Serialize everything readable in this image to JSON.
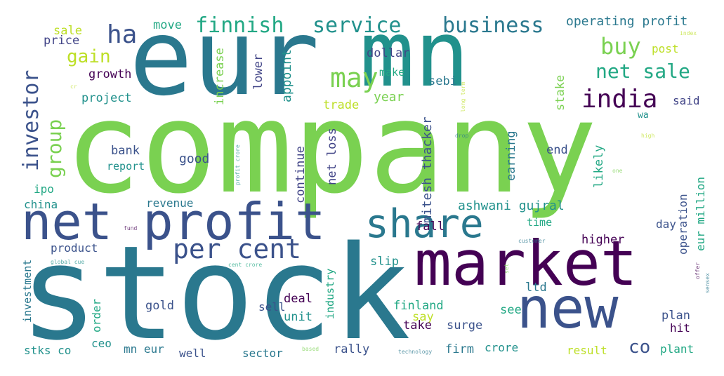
{
  "words": [
    {
      "t": "company",
      "c": "#7ad151"
    },
    {
      "t": "stock",
      "c": "#2a788e"
    },
    {
      "t": "eur",
      "c": "#2a788e"
    },
    {
      "t": "mn",
      "c": "#21918c"
    },
    {
      "t": "market",
      "c": "#440154"
    },
    {
      "t": "net profit",
      "c": "#3b528b"
    },
    {
      "t": "share",
      "c": "#2a788e"
    },
    {
      "t": "new",
      "c": "#3b528b"
    },
    {
      "t": "per cent",
      "c": "#3b528b"
    },
    {
      "t": "finnish",
      "c": "#22a884"
    },
    {
      "t": "service",
      "c": "#21918c"
    },
    {
      "t": "business",
      "c": "#2a788e"
    },
    {
      "t": "ha",
      "c": "#3b528b"
    },
    {
      "t": "may",
      "c": "#7ad151"
    },
    {
      "t": "india",
      "c": "#440154"
    },
    {
      "t": "net sale",
      "c": "#22a884"
    },
    {
      "t": "buy",
      "c": "#7ad151"
    },
    {
      "t": "co",
      "c": "#3b528b"
    },
    {
      "t": "gain",
      "c": "#bddf26"
    },
    {
      "t": "investor",
      "c": "#3b528b"
    },
    {
      "t": "group",
      "c": "#7ad151"
    },
    {
      "t": "sale",
      "c": "#bddf26"
    },
    {
      "t": "price",
      "c": "#414487"
    },
    {
      "t": "move",
      "c": "#22a884"
    },
    {
      "t": "operating profit",
      "c": "#2a788e"
    },
    {
      "t": "post",
      "c": "#bddf26"
    },
    {
      "t": "index",
      "c": "#bddf26"
    },
    {
      "t": "long term",
      "c": "#bddf26"
    },
    {
      "t": "growth",
      "c": "#440154"
    },
    {
      "t": "increase",
      "c": "#7ad151"
    },
    {
      "t": "dollar",
      "c": "#414487"
    },
    {
      "t": "lower",
      "c": "#414487"
    },
    {
      "t": "make",
      "c": "#22a884"
    },
    {
      "t": "sebi",
      "c": "#2a788e"
    },
    {
      "t": "appoint",
      "c": "#21918c"
    },
    {
      "t": "year",
      "c": "#7ad151"
    },
    {
      "t": "trade",
      "c": "#bddf26"
    },
    {
      "t": "stake",
      "c": "#7ad151"
    },
    {
      "t": "said",
      "c": "#414487"
    },
    {
      "t": "wa",
      "c": "#21918c"
    },
    {
      "t": "project",
      "c": "#21918c"
    },
    {
      "t": "cr",
      "c": "#bddf26"
    },
    {
      "t": "mitesh thacker",
      "c": "#3b528b"
    },
    {
      "t": "net loss",
      "c": "#414487"
    },
    {
      "t": "earning",
      "c": "#2a788e"
    },
    {
      "t": "likely",
      "c": "#22a884"
    },
    {
      "t": "end",
      "c": "#3b528b"
    },
    {
      "t": "eur million",
      "c": "#22a884"
    },
    {
      "t": "bank",
      "c": "#3b528b"
    },
    {
      "t": "report",
      "c": "#21918c"
    },
    {
      "t": "good",
      "c": "#3b528b"
    },
    {
      "t": "continue",
      "c": "#414487"
    },
    {
      "t": "drop",
      "c": "#2a788e"
    },
    {
      "t": "high",
      "c": "#bddf26"
    },
    {
      "t": "one",
      "c": "#7ad151"
    },
    {
      "t": "profit crore",
      "c": "#21918c"
    },
    {
      "t": "ipo",
      "c": "#22a884"
    },
    {
      "t": "china",
      "c": "#21918c"
    },
    {
      "t": "revenue",
      "c": "#2a788e"
    },
    {
      "t": "ashwani gujral",
      "c": "#21918c"
    },
    {
      "t": "fall",
      "c": "#440154"
    },
    {
      "t": "day",
      "c": "#3b528b"
    },
    {
      "t": "operation",
      "c": "#3b528b"
    },
    {
      "t": "time",
      "c": "#22a884"
    },
    {
      "t": "fund",
      "c": "#440154"
    },
    {
      "t": "customer",
      "c": "#2a788e"
    },
    {
      "t": "higher",
      "c": "#440154"
    },
    {
      "t": "product",
      "c": "#3b528b"
    },
    {
      "t": "global cue",
      "c": "#21918c"
    },
    {
      "t": "cent crore",
      "c": "#22a884"
    },
    {
      "t": "slip",
      "c": "#21918c"
    },
    {
      "t": "set",
      "c": "#7ad151"
    },
    {
      "t": "sensex",
      "c": "#2a788e"
    },
    {
      "t": "offer",
      "c": "#440154"
    },
    {
      "t": "investment",
      "c": "#2a788e"
    },
    {
      "t": "industry",
      "c": "#22a884"
    },
    {
      "t": "sell",
      "c": "#3b528b"
    },
    {
      "t": "deal",
      "c": "#440154"
    },
    {
      "t": "ltd",
      "c": "#2a788e"
    },
    {
      "t": "finland",
      "c": "#22a884"
    },
    {
      "t": "see",
      "c": "#22a884"
    },
    {
      "t": "plan",
      "c": "#3b528b"
    },
    {
      "t": "hit",
      "c": "#440154"
    },
    {
      "t": "gold",
      "c": "#3b528b"
    },
    {
      "t": "order",
      "c": "#22a884"
    },
    {
      "t": "unit",
      "c": "#21918c"
    },
    {
      "t": "say",
      "c": "#bddf26"
    },
    {
      "t": "take",
      "c": "#440154"
    },
    {
      "t": "surge",
      "c": "#3b528b"
    },
    {
      "t": "ceo",
      "c": "#21918c"
    },
    {
      "t": "stks co",
      "c": "#21918c"
    },
    {
      "t": "mn eur",
      "c": "#2a788e"
    },
    {
      "t": "well",
      "c": "#3b528b"
    },
    {
      "t": "sector",
      "c": "#2a788e"
    },
    {
      "t": "based",
      "c": "#7ad151"
    },
    {
      "t": "rally",
      "c": "#3b528b"
    },
    {
      "t": "technology",
      "c": "#2a788e"
    },
    {
      "t": "firm",
      "c": "#2a788e"
    },
    {
      "t": "crore",
      "c": "#21918c"
    },
    {
      "t": "result",
      "c": "#bddf26"
    },
    {
      "t": "plant",
      "c": "#22a884"
    }
  ]
}
